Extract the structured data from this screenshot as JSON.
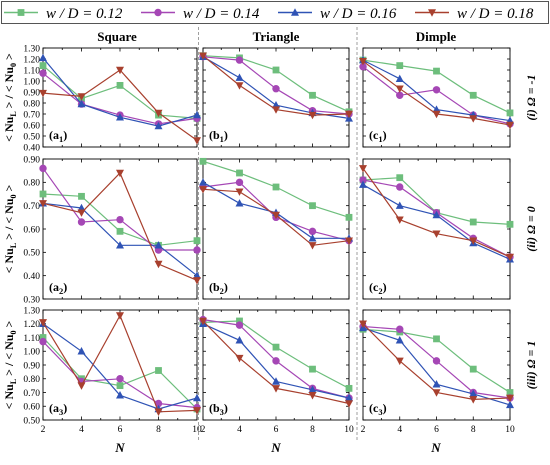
{
  "legend": [
    {
      "label": "w / D = 0.12",
      "color": "#6DBE7C",
      "marker": "square"
    },
    {
      "label": "w / D = 0.14",
      "color": "#A547B5",
      "marker": "circle"
    },
    {
      "label": "w / D = 0.16",
      "color": "#2F53B5",
      "marker": "triangle-up"
    },
    {
      "label": "w / D = 0.18",
      "color": "#A8402E",
      "marker": "triangle-down"
    }
  ],
  "column_titles": [
    "Square",
    "Triangle",
    "Dimple"
  ],
  "row_labels": [
    "(i) Ω = -1",
    "(ii) Ω = 0",
    "(iii) Ω = 1"
  ],
  "y_axis_label": "< Nu_L > / < Nu_0 >",
  "x_axis_label": "N",
  "chart_data": [
    {
      "type": "line",
      "panel": "a1",
      "row": 0,
      "col": 0,
      "x": [
        2,
        4,
        6,
        8,
        10
      ],
      "ylim": [
        0.4,
        1.3
      ],
      "yticks": [
        0.4,
        0.5,
        0.6,
        0.7,
        0.8,
        0.9,
        1.0,
        1.1,
        1.2,
        1.3
      ],
      "xticks": [
        2,
        3,
        4,
        5,
        6,
        7,
        8,
        9,
        10
      ],
      "series": [
        {
          "name": "w / D = 0.12",
          "values": [
            1.14,
            0.84,
            0.96,
            0.69,
            0.66
          ]
        },
        {
          "name": "w / D = 0.14",
          "values": [
            1.07,
            0.79,
            0.69,
            0.61,
            0.66
          ]
        },
        {
          "name": "w / D = 0.16",
          "values": [
            1.21,
            0.79,
            0.67,
            0.59,
            0.69
          ]
        },
        {
          "name": "w / D = 0.18",
          "values": [
            0.89,
            0.86,
            1.1,
            0.71,
            0.46
          ]
        }
      ]
    },
    {
      "type": "line",
      "panel": "b1",
      "row": 0,
      "col": 1,
      "x": [
        2,
        4,
        6,
        8,
        10
      ],
      "ylim": [
        0.4,
        1.3
      ],
      "yticks": [
        0.4,
        0.5,
        0.6,
        0.7,
        0.8,
        0.9,
        1.0,
        1.1,
        1.2,
        1.3
      ],
      "xticks": [
        2,
        3,
        4,
        5,
        6,
        7,
        8,
        9,
        10
      ],
      "series": [
        {
          "name": "w / D = 0.12",
          "values": [
            1.23,
            1.21,
            1.1,
            0.87,
            0.72
          ]
        },
        {
          "name": "w / D = 0.14",
          "values": [
            1.22,
            1.19,
            0.93,
            0.73,
            0.7
          ]
        },
        {
          "name": "w / D = 0.16",
          "values": [
            1.22,
            1.03,
            0.78,
            0.71,
            0.66
          ]
        },
        {
          "name": "w / D = 0.18",
          "values": [
            1.23,
            0.96,
            0.74,
            0.69,
            0.7
          ]
        }
      ]
    },
    {
      "type": "line",
      "panel": "c1",
      "row": 0,
      "col": 2,
      "x": [
        2,
        4,
        6,
        8,
        10
      ],
      "ylim": [
        0.4,
        1.3
      ],
      "yticks": [
        0.4,
        0.5,
        0.6,
        0.7,
        0.8,
        0.9,
        1.0,
        1.1,
        1.2,
        1.3
      ],
      "xticks": [
        2,
        3,
        4,
        5,
        6,
        7,
        8,
        9,
        10
      ],
      "series": [
        {
          "name": "w / D = 0.12",
          "values": [
            1.19,
            1.14,
            1.09,
            0.87,
            0.71
          ]
        },
        {
          "name": "w / D = 0.14",
          "values": [
            1.13,
            0.87,
            0.92,
            0.69,
            0.61
          ]
        },
        {
          "name": "w / D = 0.16",
          "values": [
            1.19,
            1.02,
            0.74,
            0.69,
            0.64
          ]
        },
        {
          "name": "w / D = 0.18",
          "values": [
            1.18,
            0.93,
            0.7,
            0.66,
            0.6
          ]
        }
      ]
    },
    {
      "type": "line",
      "panel": "a2",
      "row": 1,
      "col": 0,
      "x": [
        2,
        4,
        6,
        8,
        10
      ],
      "ylim": [
        0.3,
        0.9
      ],
      "yticks": [
        0.3,
        0.4,
        0.5,
        0.6,
        0.7,
        0.8,
        0.9
      ],
      "xticks": [
        2,
        3,
        4,
        5,
        6,
        7,
        8,
        9,
        10
      ],
      "series": [
        {
          "name": "w / D = 0.12",
          "values": [
            0.75,
            0.74,
            0.59,
            0.53,
            0.55
          ]
        },
        {
          "name": "w / D = 0.14",
          "values": [
            0.86,
            0.63,
            0.64,
            0.51,
            0.51
          ]
        },
        {
          "name": "w / D = 0.16",
          "values": [
            0.71,
            0.69,
            0.53,
            0.53,
            0.4
          ]
        },
        {
          "name": "w / D = 0.18",
          "values": [
            0.71,
            0.67,
            0.84,
            0.45,
            0.38
          ]
        }
      ]
    },
    {
      "type": "line",
      "panel": "b2",
      "row": 1,
      "col": 1,
      "x": [
        2,
        4,
        6,
        8,
        10
      ],
      "ylim": [
        0.3,
        0.9
      ],
      "yticks": [
        0.3,
        0.4,
        0.5,
        0.6,
        0.7,
        0.8,
        0.9
      ],
      "xticks": [
        2,
        3,
        4,
        5,
        6,
        7,
        8,
        9,
        10
      ],
      "series": [
        {
          "name": "w / D = 0.12",
          "values": [
            0.89,
            0.84,
            0.78,
            0.7,
            0.65
          ]
        },
        {
          "name": "w / D = 0.14",
          "values": [
            0.78,
            0.8,
            0.65,
            0.59,
            0.55
          ]
        },
        {
          "name": "w / D = 0.16",
          "values": [
            0.8,
            0.71,
            0.67,
            0.56,
            0.56
          ]
        },
        {
          "name": "w / D = 0.18",
          "values": [
            0.77,
            0.76,
            0.66,
            0.53,
            0.55
          ]
        }
      ]
    },
    {
      "type": "line",
      "panel": "c2",
      "row": 1,
      "col": 2,
      "x": [
        2,
        4,
        6,
        8,
        10
      ],
      "ylim": [
        0.3,
        0.9
      ],
      "yticks": [
        0.3,
        0.4,
        0.5,
        0.6,
        0.7,
        0.8,
        0.9
      ],
      "xticks": [
        2,
        3,
        4,
        5,
        6,
        7,
        8,
        9,
        10
      ],
      "series": [
        {
          "name": "w / D = 0.12",
          "values": [
            0.81,
            0.82,
            0.67,
            0.63,
            0.62
          ]
        },
        {
          "name": "w / D = 0.14",
          "values": [
            0.81,
            0.78,
            0.67,
            0.56,
            0.48
          ]
        },
        {
          "name": "w / D = 0.16",
          "values": [
            0.79,
            0.7,
            0.66,
            0.54,
            0.47
          ]
        },
        {
          "name": "w / D = 0.18",
          "values": [
            0.86,
            0.64,
            0.58,
            0.55,
            0.48
          ]
        }
      ]
    },
    {
      "type": "line",
      "panel": "a3",
      "row": 2,
      "col": 0,
      "x": [
        2,
        4,
        6,
        8,
        10
      ],
      "ylim": [
        0.5,
        1.3
      ],
      "yticks": [
        0.5,
        0.6,
        0.7,
        0.8,
        0.9,
        1.0,
        1.1,
        1.2,
        1.3
      ],
      "xticks": [
        2,
        3,
        4,
        5,
        6,
        7,
        8,
        9,
        10
      ],
      "series": [
        {
          "name": "w / D = 0.12",
          "values": [
            1.1,
            0.8,
            0.75,
            0.86,
            0.58
          ]
        },
        {
          "name": "w / D = 0.14",
          "values": [
            1.07,
            0.78,
            0.8,
            0.62,
            0.59
          ]
        },
        {
          "name": "w / D = 0.16",
          "values": [
            1.2,
            1.0,
            0.68,
            0.58,
            0.66
          ]
        },
        {
          "name": "w / D = 0.18",
          "values": [
            1.21,
            0.75,
            1.26,
            0.56,
            0.57
          ]
        }
      ]
    },
    {
      "type": "line",
      "panel": "b3",
      "row": 2,
      "col": 1,
      "x": [
        2,
        4,
        6,
        8,
        10
      ],
      "ylim": [
        0.5,
        1.3
      ],
      "yticks": [
        0.5,
        0.6,
        0.7,
        0.8,
        0.9,
        1.0,
        1.1,
        1.2,
        1.3
      ],
      "xticks": [
        2,
        3,
        4,
        5,
        6,
        7,
        8,
        9,
        10
      ],
      "series": [
        {
          "name": "w / D = 0.12",
          "values": [
            1.21,
            1.22,
            1.03,
            0.87,
            0.73
          ]
        },
        {
          "name": "w / D = 0.14",
          "values": [
            1.23,
            1.19,
            0.93,
            0.73,
            0.66
          ]
        },
        {
          "name": "w / D = 0.16",
          "values": [
            1.2,
            1.08,
            0.78,
            0.72,
            0.66
          ]
        },
        {
          "name": "w / D = 0.18",
          "values": [
            1.22,
            0.95,
            0.73,
            0.68,
            0.62
          ]
        }
      ]
    },
    {
      "type": "line",
      "panel": "c3",
      "row": 2,
      "col": 2,
      "x": [
        2,
        4,
        6,
        8,
        10
      ],
      "ylim": [
        0.5,
        1.3
      ],
      "yticks": [
        0.5,
        0.6,
        0.7,
        0.8,
        0.9,
        1.0,
        1.1,
        1.2,
        1.3
      ],
      "xticks": [
        2,
        3,
        4,
        5,
        6,
        7,
        8,
        9,
        10
      ],
      "series": [
        {
          "name": "w / D = 0.12",
          "values": [
            1.16,
            1.14,
            1.09,
            0.87,
            0.7
          ]
        },
        {
          "name": "w / D = 0.14",
          "values": [
            1.18,
            1.16,
            0.93,
            0.7,
            0.66
          ]
        },
        {
          "name": "w / D = 0.16",
          "values": [
            1.17,
            1.08,
            0.76,
            0.69,
            0.61
          ]
        },
        {
          "name": "w / D = 0.18",
          "values": [
            1.2,
            0.93,
            0.7,
            0.65,
            0.66
          ]
        }
      ]
    }
  ]
}
